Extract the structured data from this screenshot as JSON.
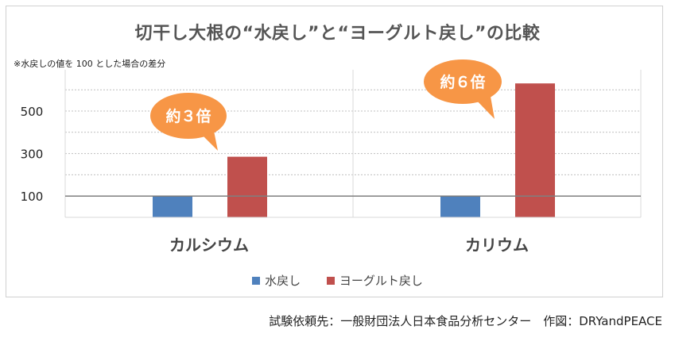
{
  "chart_data": {
    "type": "bar",
    "title": "切干し大根の“水戻し”と“ヨーグルト戻し”の比較",
    "subtitle": "※水戻しの値を 100 とした場合の差分",
    "categories": [
      "カルシウム",
      "カリウム"
    ],
    "series": [
      {
        "name": "水戻し",
        "color": "#4f81bd",
        "values": [
          100,
          100
        ]
      },
      {
        "name": "ヨーグルト戻し",
        "color": "#c0504d",
        "values": [
          285,
          630
        ]
      }
    ],
    "y_ticks": [
      "100",
      "300",
      "500"
    ],
    "ylim": [
      0,
      700
    ],
    "grid": "dotted",
    "annotations": [
      {
        "text": "約３倍",
        "category": "カルシウム"
      },
      {
        "text": "約６倍",
        "category": "カリウム"
      }
    ],
    "callout_color": "#f79646",
    "legend_position": "bottom"
  },
  "footer": {
    "credit": "試験依頼先：一般財団法人日本食品分析センター　作図：DRYandPEACE"
  }
}
